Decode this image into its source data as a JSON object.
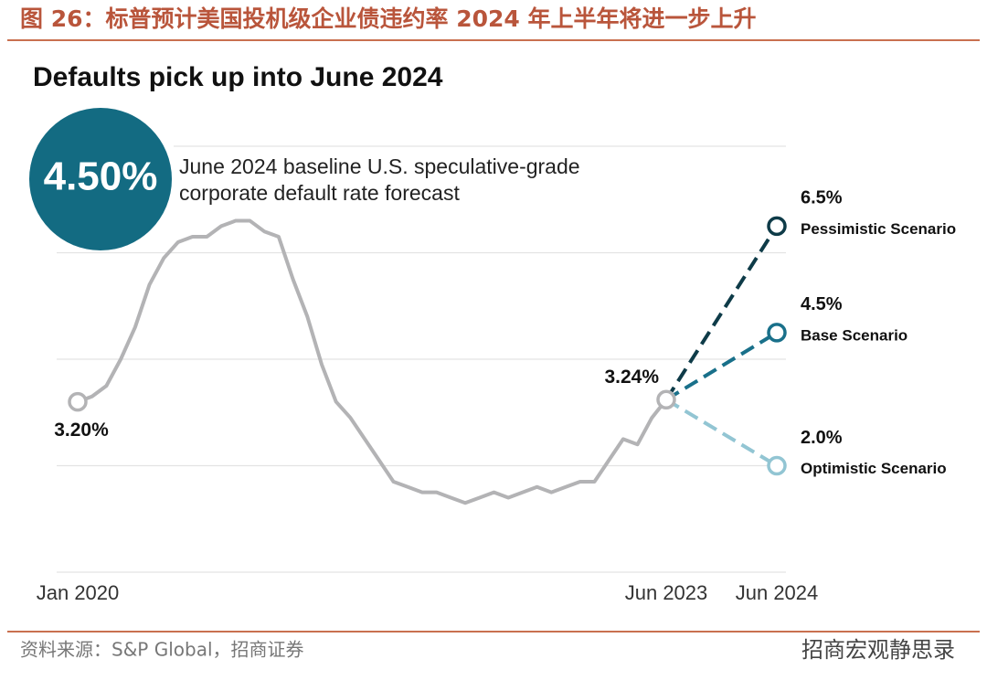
{
  "figure_title": "图 26：标普预计美国投机级企业债违约率 2024 年上半年将进一步上升",
  "source": "资料来源：S&P Global，招商证券",
  "watermark": "招商宏观静思录",
  "chart_data": {
    "type": "line",
    "title": "Defaults pick up into June 2024",
    "callout": "4.50%",
    "callout_text": [
      "June 2024 baseline U.S. speculative-grade",
      "corporate default rate forecast"
    ],
    "categories": [
      "Jan 2020",
      null,
      null,
      null,
      null,
      null,
      null,
      null,
      null,
      null,
      null,
      null,
      null,
      null,
      null,
      null,
      null,
      null,
      null,
      null,
      null,
      null,
      null,
      null,
      null,
      null,
      null,
      null,
      null,
      null,
      null,
      null,
      null,
      null,
      null,
      null,
      null,
      null,
      null,
      null,
      null,
      "Jun 2023",
      "Jun 2024"
    ],
    "ylim": [
      0,
      8
    ],
    "yticks": [
      0,
      2,
      4,
      6,
      8
    ],
    "grid": true,
    "series": [
      {
        "color": "#b3b3b5",
        "values": [
          3.2,
          3.3,
          3.5,
          4.0,
          4.6,
          5.4,
          5.9,
          6.2,
          6.3,
          6.3,
          6.5,
          6.6,
          6.6,
          6.4,
          6.3,
          5.5,
          4.8,
          3.9,
          3.2,
          2.9,
          2.5,
          2.1,
          1.7,
          1.6,
          1.5,
          1.5,
          1.4,
          1.3,
          1.4,
          1.5,
          1.4,
          1.5,
          1.6,
          1.5,
          1.6,
          1.7,
          1.7,
          2.1,
          2.5,
          2.4,
          2.9,
          3.24,
          null
        ],
        "value_labels": [
          "3.20%",
          null,
          null,
          null,
          null,
          null,
          null,
          null,
          null,
          null,
          null,
          null,
          null,
          null,
          null,
          null,
          null,
          null,
          null,
          null,
          null,
          null,
          null,
          null,
          null,
          null,
          null,
          null,
          null,
          null,
          null,
          null,
          null,
          null,
          null,
          null,
          null,
          null,
          null,
          null,
          null,
          "3.24%",
          null
        ]
      },
      {
        "name": "Pessimistic Scenario",
        "color": "#0e3b48",
        "values": [
          null,
          null,
          null,
          null,
          null,
          null,
          null,
          null,
          null,
          null,
          null,
          null,
          null,
          null,
          null,
          null,
          null,
          null,
          null,
          null,
          null,
          null,
          null,
          null,
          null,
          null,
          null,
          null,
          null,
          null,
          null,
          null,
          null,
          null,
          null,
          null,
          null,
          null,
          null,
          null,
          null,
          3.24,
          6.5
        ],
        "value_labels": [
          null,
          null,
          null,
          null,
          null,
          null,
          null,
          null,
          null,
          null,
          null,
          null,
          null,
          null,
          null,
          null,
          null,
          null,
          null,
          null,
          null,
          null,
          null,
          null,
          null,
          null,
          null,
          null,
          null,
          null,
          null,
          null,
          null,
          null,
          null,
          null,
          null,
          null,
          null,
          null,
          null,
          null,
          "6.5%"
        ]
      },
      {
        "name": "Base Scenario",
        "color": "#19708a",
        "values": [
          null,
          null,
          null,
          null,
          null,
          null,
          null,
          null,
          null,
          null,
          null,
          null,
          null,
          null,
          null,
          null,
          null,
          null,
          null,
          null,
          null,
          null,
          null,
          null,
          null,
          null,
          null,
          null,
          null,
          null,
          null,
          null,
          null,
          null,
          null,
          null,
          null,
          null,
          null,
          null,
          null,
          3.24,
          4.5
        ],
        "value_labels": [
          null,
          null,
          null,
          null,
          null,
          null,
          null,
          null,
          null,
          null,
          null,
          null,
          null,
          null,
          null,
          null,
          null,
          null,
          null,
          null,
          null,
          null,
          null,
          null,
          null,
          null,
          null,
          null,
          null,
          null,
          null,
          null,
          null,
          null,
          null,
          null,
          null,
          null,
          null,
          null,
          null,
          null,
          "4.5%"
        ]
      },
      {
        "name": "Optimistic Scenario",
        "color": "#92c5d3",
        "values": [
          null,
          null,
          null,
          null,
          null,
          null,
          null,
          null,
          null,
          null,
          null,
          null,
          null,
          null,
          null,
          null,
          null,
          null,
          null,
          null,
          null,
          null,
          null,
          null,
          null,
          null,
          null,
          null,
          null,
          null,
          null,
          null,
          null,
          null,
          null,
          null,
          null,
          null,
          null,
          null,
          null,
          3.24,
          2.0
        ],
        "value_labels": [
          null,
          null,
          null,
          null,
          null,
          null,
          null,
          null,
          null,
          null,
          null,
          null,
          null,
          null,
          null,
          null,
          null,
          null,
          null,
          null,
          null,
          null,
          null,
          null,
          null,
          null,
          null,
          null,
          null,
          null,
          null,
          null,
          null,
          null,
          null,
          null,
          null,
          null,
          null,
          null,
          null,
          null,
          "2.0%"
        ]
      }
    ]
  }
}
